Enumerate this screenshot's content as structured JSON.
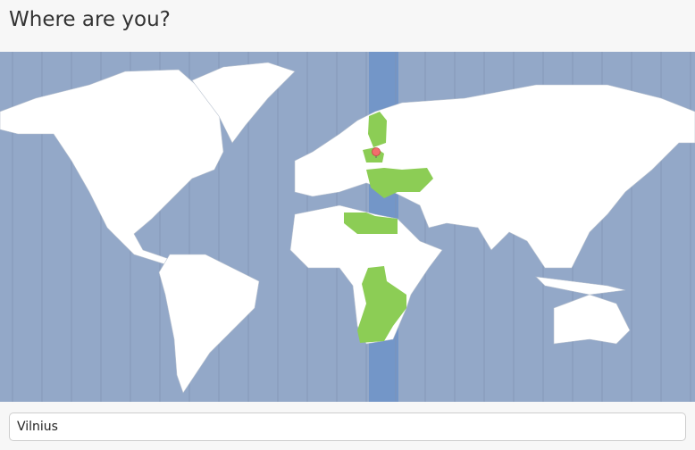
{
  "header": {
    "title": "Where are you?"
  },
  "map": {
    "selected_city": "Vilnius",
    "ocean_color": "#93a8c8",
    "selected_timezone_band_color": "#7396c8",
    "land_color": "#ffffff",
    "highlight_land_color": "#8ccd55",
    "pin_color": "#f26d6d",
    "pin_icon": "location-pin-icon"
  },
  "location_input": {
    "value": "Vilnius"
  }
}
